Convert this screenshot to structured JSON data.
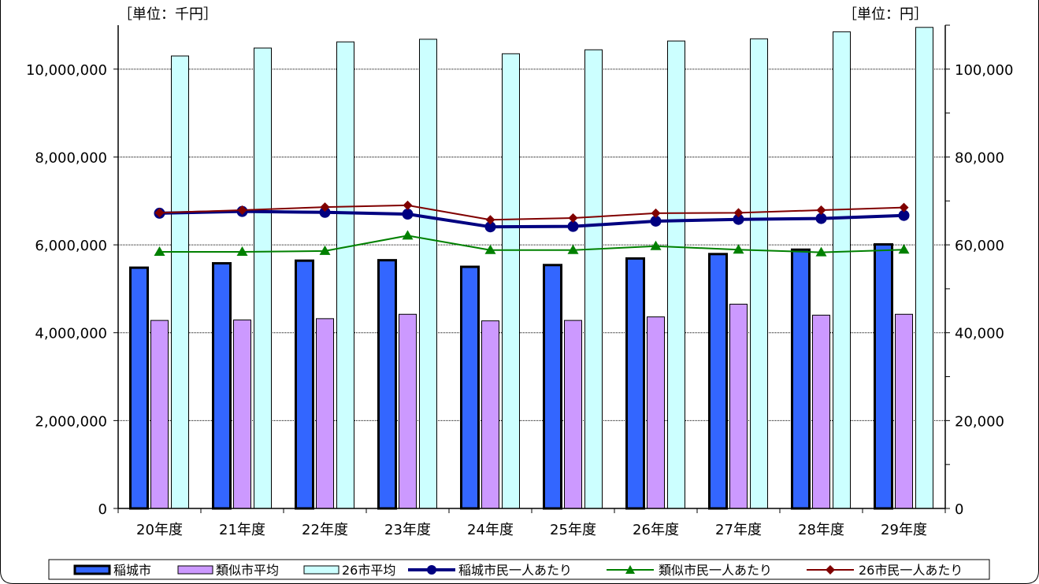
{
  "chart_data": {
    "type": "bar",
    "categories": [
      "20年度",
      "21年度",
      "22年度",
      "23年度",
      "24年度",
      "25年度",
      "26年度",
      "27年度",
      "28年度",
      "29年度"
    ],
    "left_unit": "［単位：千円］",
    "right_unit": "［単位：円］",
    "y_left": {
      "range": [
        0,
        11000000
      ],
      "ticks": [
        0,
        2000000,
        4000000,
        6000000,
        8000000,
        10000000
      ],
      "tick_labels": [
        "0",
        "2,000,000",
        "4,000,000",
        "6,000,000",
        "8,000,000",
        "10,000,000"
      ]
    },
    "y_right": {
      "range": [
        0,
        110000
      ],
      "ticks": [
        0,
        20000,
        40000,
        60000,
        80000,
        100000
      ],
      "tick_labels": [
        "0",
        "20,000",
        "40,000",
        "60,000",
        "80,000",
        "100,000"
      ]
    },
    "bar_series": [
      {
        "name": "稲城市",
        "color": "#3366ff",
        "values": [
          5480000,
          5580000,
          5640000,
          5650000,
          5500000,
          5540000,
          5690000,
          5790000,
          5890000,
          6010000
        ]
      },
      {
        "name": "類似市平均",
        "color": "#cc99ff",
        "values": [
          4280000,
          4290000,
          4320000,
          4420000,
          4270000,
          4280000,
          4360000,
          4650000,
          4400000,
          4420000
        ]
      },
      {
        "name": "26市平均",
        "color": "#ccffff",
        "values": [
          10300000,
          10480000,
          10620000,
          10680000,
          10350000,
          10440000,
          10640000,
          10690000,
          10850000,
          10950000
        ]
      }
    ],
    "line_series": [
      {
        "name": "稲城市民一人あたり",
        "color": "#000080",
        "marker": "circle",
        "values": [
          67200,
          67600,
          67400,
          67000,
          64100,
          64200,
          65400,
          65800,
          66000,
          66700
        ]
      },
      {
        "name": "類似市民一人あたり",
        "color": "#008000",
        "marker": "triangle",
        "values": [
          58400,
          58400,
          58600,
          62100,
          58800,
          58800,
          59700,
          58900,
          58300,
          58900
        ]
      },
      {
        "name": "26市民一人あたり",
        "color": "#800000",
        "marker": "diamond",
        "values": [
          67300,
          67900,
          68600,
          69000,
          65700,
          66100,
          67200,
          67300,
          67900,
          68500
        ]
      }
    ],
    "grid": true,
    "legend_position": "bottom"
  }
}
